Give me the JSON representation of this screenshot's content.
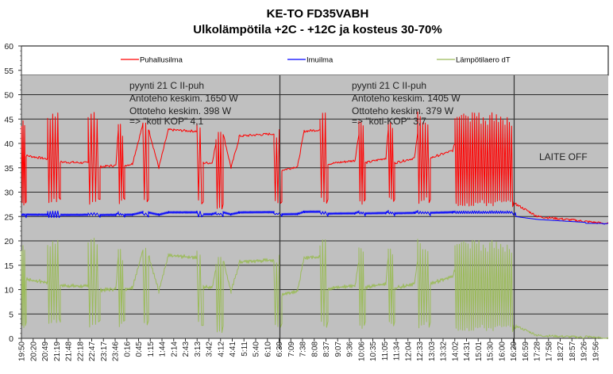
{
  "chart_data": {
    "type": "line",
    "title": "KE-TO FD35VABH",
    "subtitle": "Ulkolämpötila +2C - +12C ja kosteus 30-70%",
    "xlabel": "",
    "ylabel": "",
    "ylim": [
      0,
      60
    ],
    "yticks": [
      "0",
      "5",
      "10",
      "15",
      "20",
      "25",
      "30",
      "35",
      "40",
      "45",
      "50",
      "55",
      "60"
    ],
    "grid": true,
    "legend_position": "top",
    "x_unit": "minutes since 19:50",
    "xlim": [
      0,
      1478
    ],
    "xticks": [
      "19:50",
      "20:20",
      "20:49",
      "21:19",
      "21:48",
      "22:18",
      "22:47",
      "23:17",
      "23:46",
      "0:16",
      "0:45",
      "1:15",
      "1:44",
      "2:14",
      "2:43",
      "3:13",
      "3:42",
      "4:12",
      "4:41",
      "5:11",
      "5:40",
      "6:10",
      "6:39",
      "7:09",
      "7:38",
      "8:08",
      "8:37",
      "9:07",
      "9:36",
      "10:06",
      "10:35",
      "11:05",
      "11:34",
      "12:04",
      "12:33",
      "13:03",
      "13:32",
      "14:02",
      "14:31",
      "15:01",
      "15:30",
      "16:00",
      "16:29",
      "16:59",
      "17:28",
      "17:58",
      "18:27",
      "18:57",
      "19:26",
      "19:56"
    ],
    "series": [
      {
        "name": "Puhallusilma",
        "color": "#ff0000",
        "segments": [
          {
            "t": [
              0,
              12
            ],
            "burst": 3,
            "hi": 45,
            "lo": 27
          },
          {
            "t": [
              12,
              66
            ],
            "v": [
              37.5,
              36.8
            ]
          },
          {
            "t": [
              66,
              98
            ],
            "burst": 5,
            "hi": 46.5,
            "lo": 27.5
          },
          {
            "t": [
              98,
              168
            ],
            "v": [
              36.2,
              36
            ]
          },
          {
            "t": [
              168,
              198
            ],
            "burst": 4,
            "hi": 47,
            "lo": 27.5
          },
          {
            "t": [
              198,
              238
            ],
            "v": [
              35.2,
              35.5
            ]
          },
          {
            "t": [
              238,
              244
            ],
            "v": [
              35.5,
              43
            ]
          },
          {
            "t": [
              244,
              260
            ],
            "burst": 3,
            "hi": 44,
            "lo": 27.5
          },
          {
            "t": [
              260,
              280
            ],
            "v": [
              35.5,
              35.8
            ]
          },
          {
            "t": [
              280,
              306
            ],
            "v": [
              36,
              44
            ]
          },
          {
            "t": [
              306,
              320
            ],
            "burst": 2,
            "hi": 45,
            "lo": 27.5
          },
          {
            "t": [
              320,
              346
            ],
            "v": [
              43,
              35
            ]
          },
          {
            "t": [
              346,
              370
            ],
            "v": [
              35,
              42.8
            ]
          },
          {
            "t": [
              370,
              442
            ],
            "v": [
              42.8,
              42.5
            ]
          },
          {
            "t": [
              442,
              458
            ],
            "burst": 2,
            "hi": 45,
            "lo": 27
          },
          {
            "t": [
              458,
              480
            ],
            "v": [
              36,
              36
            ]
          },
          {
            "t": [
              480,
              490
            ],
            "v": [
              36,
              40
            ]
          },
          {
            "t": [
              490,
              508
            ],
            "burst": 3,
            "hi": 43.5,
            "lo": 26.5
          },
          {
            "t": [
              508,
              528
            ],
            "v": [
              42,
              35
            ]
          },
          {
            "t": [
              528,
              548
            ],
            "v": [
              35,
              41
            ]
          },
          {
            "t": [
              548,
              636
            ],
            "v": [
              41.5,
              42
            ]
          },
          {
            "t": [
              636,
              656
            ],
            "burst": 3,
            "hi": 43,
            "lo": 27
          },
          {
            "t": [
              656,
              696
            ],
            "v": [
              34.5,
              35.3
            ]
          },
          {
            "t": [
              696,
              712
            ],
            "v": [
              35.5,
              42.5
            ]
          },
          {
            "t": [
              712,
              752
            ],
            "v": [
              42.5,
              42.8
            ]
          },
          {
            "t": [
              752,
              772
            ],
            "burst": 3,
            "hi": 46.5,
            "lo": 27.5
          },
          {
            "t": [
              772,
              840
            ],
            "v": [
              35.8,
              36.5
            ]
          },
          {
            "t": [
              840,
              850
            ],
            "v": [
              36.5,
              42
            ]
          },
          {
            "t": [
              850,
              866
            ],
            "burst": 3,
            "hi": 46,
            "lo": 27.5
          },
          {
            "t": [
              866,
              918
            ],
            "v": [
              36,
              37
            ]
          },
          {
            "t": [
              918,
              924
            ],
            "v": [
              37,
              43
            ]
          },
          {
            "t": [
              924,
              940
            ],
            "burst": 3,
            "hi": 45,
            "lo": 27.5
          },
          {
            "t": [
              940,
              990
            ],
            "v": [
              36,
              37
            ]
          },
          {
            "t": [
              990,
              998
            ],
            "v": [
              37,
              42
            ]
          },
          {
            "t": [
              998,
              1030
            ],
            "burst": 5,
            "hi": 46.5,
            "lo": 27.5
          },
          {
            "t": [
              1030,
              1086
            ],
            "v": [
              37,
              38.5
            ]
          },
          {
            "t": [
              1086,
              1092
            ],
            "v": [
              38.5,
              40
            ]
          },
          {
            "t": [
              1092,
              1240
            ],
            "burst": 27,
            "hi": 46.5,
            "lo": 27
          },
          {
            "t": [
              1240,
              1246
            ],
            "v": [
              27.5,
              27.5
            ]
          },
          {
            "t": [
              1246,
              1300
            ],
            "v": [
              27.5,
              25
            ]
          },
          {
            "t": [
              1300,
              1420
            ],
            "v": [
              25,
              24
            ]
          },
          {
            "t": [
              1420,
              1478
            ],
            "v": [
              24,
              23.5
            ]
          }
        ]
      },
      {
        "name": "Imuilma",
        "color": "#0000ff",
        "segments": [
          {
            "t": [
              0,
              1244
            ],
            "v": [
              25.3,
              25.8
            ]
          },
          {
            "t": [
              1244,
              1300
            ],
            "v": [
              25,
              24.4
            ]
          },
          {
            "t": [
              1300,
              1420
            ],
            "v": [
              24.4,
              23.8
            ]
          },
          {
            "t": [
              1420,
              1478
            ],
            "v": [
              23.6,
              23.6
            ]
          }
        ]
      },
      {
        "name": "Lämpötilaero dT",
        "color": "#9bbb59",
        "formula": "Puhallusilma - Imuilma"
      }
    ],
    "annotations": [
      {
        "lines": [
          "pyynti 21 C II-puh",
          "Antoteho keskim. 1650 W",
          "Ottoteho keskim. 398 W",
          "=> \"koti KOP\"  4,1"
        ]
      },
      {
        "lines": [
          "pyynti 21 C II-puh",
          "Antoteho keskim. 1405 W",
          "Ottoteho keskim. 379 W",
          "=> \"koti-KOP\"  3,7"
        ]
      },
      {
        "lines": [
          "LAITE OFF"
        ]
      }
    ],
    "separators_at": [
      "6:39",
      "16:29"
    ]
  }
}
